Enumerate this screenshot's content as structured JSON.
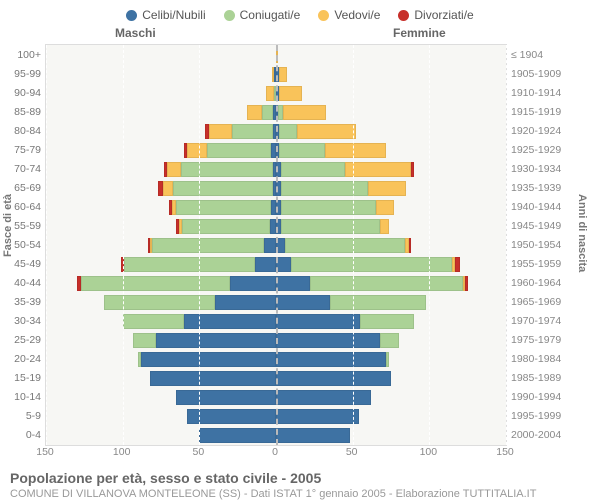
{
  "legend": [
    {
      "label": "Celibi/Nubili",
      "color": "#3e72a3"
    },
    {
      "label": "Coniugati/e",
      "color": "#abd296"
    },
    {
      "label": "Vedovi/e",
      "color": "#f9c35a"
    },
    {
      "label": "Divorziati/e",
      "color": "#c72f2a"
    }
  ],
  "headers": {
    "male": "Maschi",
    "female": "Femmine"
  },
  "axis_left": "Fasce di età",
  "axis_right": "Anni di nascita",
  "xmax": 150,
  "xticks": [
    150,
    100,
    50,
    0,
    50,
    100,
    150
  ],
  "title": "Popolazione per età, sesso e stato civile - 2005",
  "subtitle": "COMUNE DI VILLANOVA MONTELEONE (SS) - Dati ISTAT 1° gennaio 2005 - Elaborazione TUTTITALIA.IT",
  "ages": [
    "100+",
    "95-99",
    "90-94",
    "85-89",
    "80-84",
    "75-79",
    "70-74",
    "65-69",
    "60-64",
    "55-59",
    "50-54",
    "45-49",
    "40-44",
    "35-39",
    "30-34",
    "25-29",
    "20-24",
    "15-19",
    "10-14",
    "5-9",
    "0-4"
  ],
  "years": [
    "≤ 1904",
    "1905-1909",
    "1910-1914",
    "1915-1919",
    "1920-1924",
    "1925-1929",
    "1930-1934",
    "1935-1939",
    "1940-1944",
    "1945-1949",
    "1950-1954",
    "1955-1959",
    "1960-1964",
    "1965-1969",
    "1970-1974",
    "1975-1979",
    "1980-1984",
    "1985-1989",
    "1990-1994",
    "1995-1999",
    "2000-2004"
  ],
  "data": {
    "male": [
      [
        0,
        0,
        0,
        0
      ],
      [
        1,
        0,
        1,
        0
      ],
      [
        0,
        1,
        5,
        0
      ],
      [
        2,
        7,
        10,
        0
      ],
      [
        2,
        27,
        15,
        2
      ],
      [
        3,
        42,
        13,
        2
      ],
      [
        2,
        60,
        9,
        2
      ],
      [
        2,
        65,
        7,
        3
      ],
      [
        3,
        62,
        3,
        2
      ],
      [
        4,
        57,
        2,
        2
      ],
      [
        8,
        73,
        1,
        1
      ],
      [
        14,
        85,
        0,
        2
      ],
      [
        30,
        97,
        0,
        3
      ],
      [
        40,
        72,
        0,
        0
      ],
      [
        60,
        40,
        0,
        0
      ],
      [
        78,
        15,
        0,
        0
      ],
      [
        88,
        2,
        0,
        0
      ],
      [
        82,
        0,
        0,
        0
      ],
      [
        65,
        0,
        0,
        0
      ],
      [
        58,
        0,
        0,
        0
      ],
      [
        50,
        0,
        0,
        0
      ]
    ],
    "female": [
      [
        0,
        0,
        1,
        0
      ],
      [
        2,
        0,
        5,
        0
      ],
      [
        2,
        0,
        15,
        0
      ],
      [
        1,
        3,
        28,
        0
      ],
      [
        2,
        12,
        38,
        0
      ],
      [
        2,
        30,
        40,
        0
      ],
      [
        3,
        42,
        43,
        2
      ],
      [
        3,
        57,
        25,
        0
      ],
      [
        3,
        62,
        12,
        0
      ],
      [
        3,
        65,
        6,
        0
      ],
      [
        6,
        78,
        3,
        1
      ],
      [
        10,
        105,
        2,
        3
      ],
      [
        22,
        100,
        1,
        2
      ],
      [
        35,
        63,
        0,
        0
      ],
      [
        55,
        35,
        0,
        0
      ],
      [
        68,
        12,
        0,
        0
      ],
      [
        72,
        2,
        0,
        0
      ],
      [
        75,
        0,
        0,
        0
      ],
      [
        62,
        0,
        0,
        0
      ],
      [
        54,
        0,
        0,
        0
      ],
      [
        48,
        0,
        0,
        0
      ]
    ]
  }
}
